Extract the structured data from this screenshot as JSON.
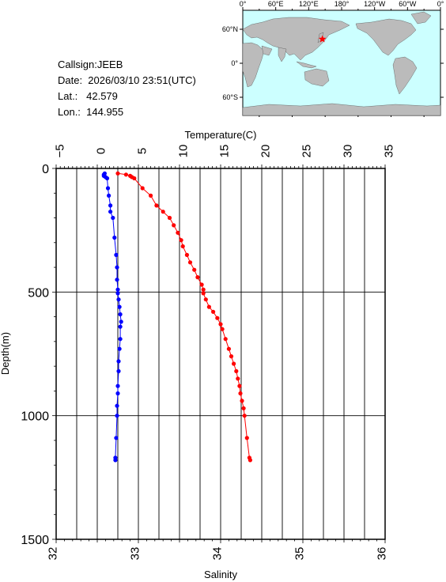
{
  "info": {
    "callsign": "Callsign:JEEB",
    "date": "Date:  2026/03/10 23:51(UTC)",
    "lat": "Lat.:   42.579",
    "lon": "Lon.:  144.955"
  },
  "map": {
    "lon_labels": [
      "0°",
      "60°E",
      "120°E",
      "180°",
      "120°W",
      "60°W",
      "0°"
    ],
    "lat_labels": [
      "60°N",
      "0°",
      "60°S"
    ],
    "station": {
      "lat": 42.579,
      "lon": 144.955
    },
    "colors": {
      "ocean": "#ccffff",
      "land": "#bbbbbb",
      "marker": "#ff0000"
    }
  },
  "chart_data": {
    "type": "line",
    "title": "",
    "ylabel": "Depth(m)",
    "ylim": [
      1500,
      0
    ],
    "y_ticks": [
      0,
      500,
      1000,
      1500
    ],
    "top_axis": {
      "label": "Temperature(C)",
      "range": [
        -5,
        35
      ],
      "ticks": [
        -5,
        0,
        5,
        10,
        15,
        20,
        25,
        30,
        35
      ]
    },
    "bottom_axis": {
      "label": "Salinity",
      "range": [
        32,
        36
      ],
      "ticks": [
        32,
        33,
        34,
        35,
        36
      ]
    },
    "grid": true,
    "series": [
      {
        "axis": "top",
        "color": "#ff0000",
        "points": [
          [
            2.5,
            20
          ],
          [
            3.5,
            25
          ],
          [
            4.0,
            30
          ],
          [
            4.2,
            35
          ],
          [
            4.5,
            40
          ],
          [
            5.5,
            80
          ],
          [
            6.5,
            110
          ],
          [
            7.2,
            150
          ],
          [
            8.0,
            175
          ],
          [
            8.8,
            200
          ],
          [
            9.3,
            230
          ],
          [
            9.8,
            260
          ],
          [
            10.2,
            290
          ],
          [
            10.4,
            315
          ],
          [
            10.9,
            350
          ],
          [
            11.3,
            380
          ],
          [
            11.8,
            410
          ],
          [
            12.2,
            440
          ],
          [
            12.7,
            470
          ],
          [
            12.9,
            490
          ],
          [
            12.9,
            505
          ],
          [
            13.2,
            530
          ],
          [
            13.6,
            560
          ],
          [
            14.1,
            580
          ],
          [
            14.6,
            605
          ],
          [
            15.0,
            630
          ],
          [
            15.2,
            650
          ],
          [
            15.6,
            690
          ],
          [
            16.0,
            730
          ],
          [
            16.3,
            760
          ],
          [
            16.6,
            790
          ],
          [
            16.9,
            820
          ],
          [
            17.1,
            850
          ],
          [
            17.3,
            880
          ],
          [
            17.4,
            910
          ],
          [
            17.6,
            940
          ],
          [
            17.8,
            970
          ],
          [
            17.9,
            1000
          ],
          [
            18.2,
            1090
          ],
          [
            18.5,
            1170
          ],
          [
            18.6,
            1180
          ]
        ]
      },
      {
        "axis": "bottom",
        "color": "#0000ff",
        "points": [
          [
            32.59,
            20
          ],
          [
            32.58,
            25
          ],
          [
            32.58,
            30
          ],
          [
            32.6,
            35
          ],
          [
            32.62,
            40
          ],
          [
            32.63,
            80
          ],
          [
            32.64,
            110
          ],
          [
            32.66,
            150
          ],
          [
            32.66,
            175
          ],
          [
            32.69,
            200
          ],
          [
            32.71,
            280
          ],
          [
            32.73,
            350
          ],
          [
            32.74,
            400
          ],
          [
            32.74,
            450
          ],
          [
            32.75,
            490
          ],
          [
            32.75,
            505
          ],
          [
            32.76,
            530
          ],
          [
            32.77,
            560
          ],
          [
            32.78,
            590
          ],
          [
            32.79,
            620
          ],
          [
            32.78,
            640
          ],
          [
            32.78,
            690
          ],
          [
            32.77,
            730
          ],
          [
            32.76,
            780
          ],
          [
            32.76,
            820
          ],
          [
            32.75,
            880
          ],
          [
            32.75,
            910
          ],
          [
            32.74,
            960
          ],
          [
            32.74,
            1000
          ],
          [
            32.73,
            1090
          ],
          [
            32.72,
            1170
          ],
          [
            32.72,
            1180
          ]
        ]
      }
    ]
  }
}
